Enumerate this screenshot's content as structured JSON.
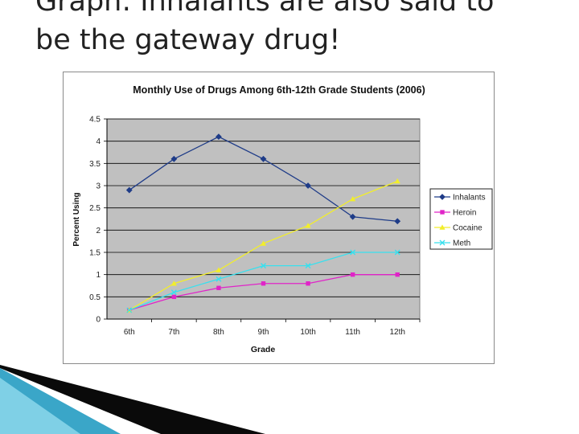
{
  "slide": {
    "title_line1": "Graph: Inhalants are also said to",
    "title_line2": "be the gateway drug!"
  },
  "chart_data": {
    "type": "line",
    "title": "Monthly Use of Drugs Among 6th-12th Grade Students (2006)",
    "xlabel": "Grade",
    "ylabel": "Percent Using",
    "categories": [
      "6th",
      "7th",
      "8th",
      "9th",
      "10th",
      "11th",
      "12th"
    ],
    "ylim": [
      0,
      4.5
    ],
    "yticks": [
      0,
      0.5,
      1,
      1.5,
      2,
      2.5,
      3,
      3.5,
      4,
      4.5
    ],
    "ytick_labels": [
      "0",
      "0.5",
      "1",
      "1.5",
      "2",
      "2.5",
      "3",
      "3.5",
      "4",
      "4.5"
    ],
    "grid": true,
    "legend": "right",
    "series": [
      {
        "name": "Inhalants",
        "values": [
          2.9,
          3.6,
          4.1,
          3.6,
          3.0,
          2.3,
          2.2
        ],
        "color": "#1f3c88",
        "marker": "diamond"
      },
      {
        "name": "Heroin",
        "values": [
          0.2,
          0.5,
          0.7,
          0.8,
          0.8,
          1.0,
          1.0
        ],
        "color": "#e024c8",
        "marker": "square"
      },
      {
        "name": "Cocaine",
        "values": [
          0.2,
          0.8,
          1.1,
          1.7,
          2.1,
          2.7,
          3.1
        ],
        "color": "#f2ee2a",
        "marker": "triangle"
      },
      {
        "name": "Meth",
        "values": [
          0.2,
          0.6,
          0.9,
          1.2,
          1.2,
          1.5,
          1.5
        ],
        "color": "#38e0ee",
        "marker": "x"
      }
    ]
  },
  "colors": {
    "plot_background": "#c0c0c0",
    "gridline": "#000000",
    "deco_dark": "#0a0a0a",
    "deco_blue": "#3aa6c8"
  }
}
